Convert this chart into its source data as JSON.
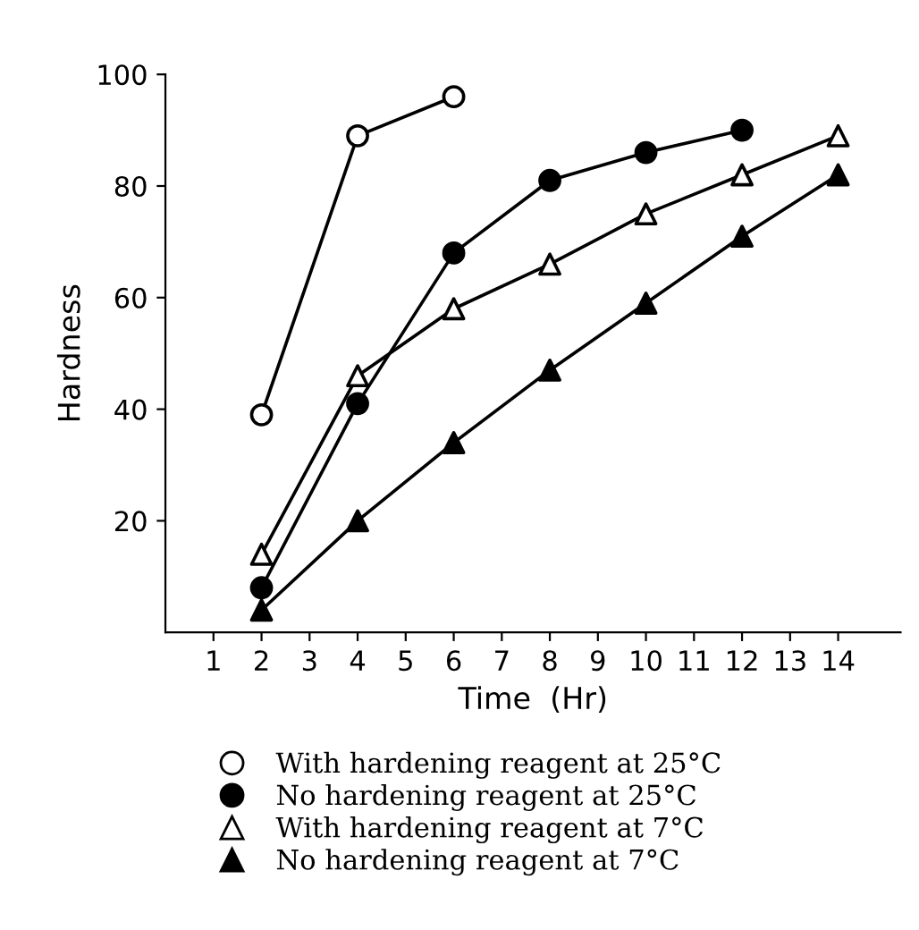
{
  "chart_data": {
    "type": "line",
    "xlabel": "Time  (Hr)",
    "ylabel": "Hardness",
    "xlim": [
      0,
      15.3
    ],
    "xticks": [
      1,
      2,
      3,
      4,
      5,
      6,
      7,
      8,
      9,
      10,
      11,
      12,
      13,
      14
    ],
    "ylim": [
      0,
      100
    ],
    "yticks": [
      20,
      40,
      60,
      80,
      100
    ],
    "grid": false,
    "legend": "bottom",
    "line_style": "solid",
    "series": [
      {
        "name": "With hardening reagent at 25°C",
        "color": "#000000",
        "marker": "circle",
        "colors": [
          "#ffffff",
          "#ffffff",
          "#ffffff"
        ],
        "x": [
          2,
          4,
          6
        ],
        "values": [
          39,
          89,
          96
        ]
      },
      {
        "name": "No hardening reagent at 25°C",
        "color": "#000000",
        "marker": "circle",
        "x": [
          2,
          4,
          6,
          8,
          10,
          12
        ],
        "values": [
          8,
          41,
          68,
          81,
          86,
          90
        ]
      },
      {
        "name": "With hardening reagent at 7°C",
        "color": "#000000",
        "marker": "triangle",
        "colors": [
          "#ffffff",
          "#ffffff",
          "#ffffff",
          "#ffffff",
          "#ffffff",
          "#ffffff",
          "#ffffff"
        ],
        "x": [
          2,
          4,
          6,
          8,
          10,
          12,
          14
        ],
        "values": [
          14,
          46,
          58,
          66,
          75,
          82,
          89
        ]
      },
      {
        "name": "No hardening reagent at 7°C",
        "color": "#000000",
        "marker": "triangle",
        "x": [
          2,
          4,
          6,
          8,
          10,
          12,
          14
        ],
        "values": [
          4,
          20,
          34,
          47,
          59,
          71,
          82
        ]
      }
    ]
  }
}
